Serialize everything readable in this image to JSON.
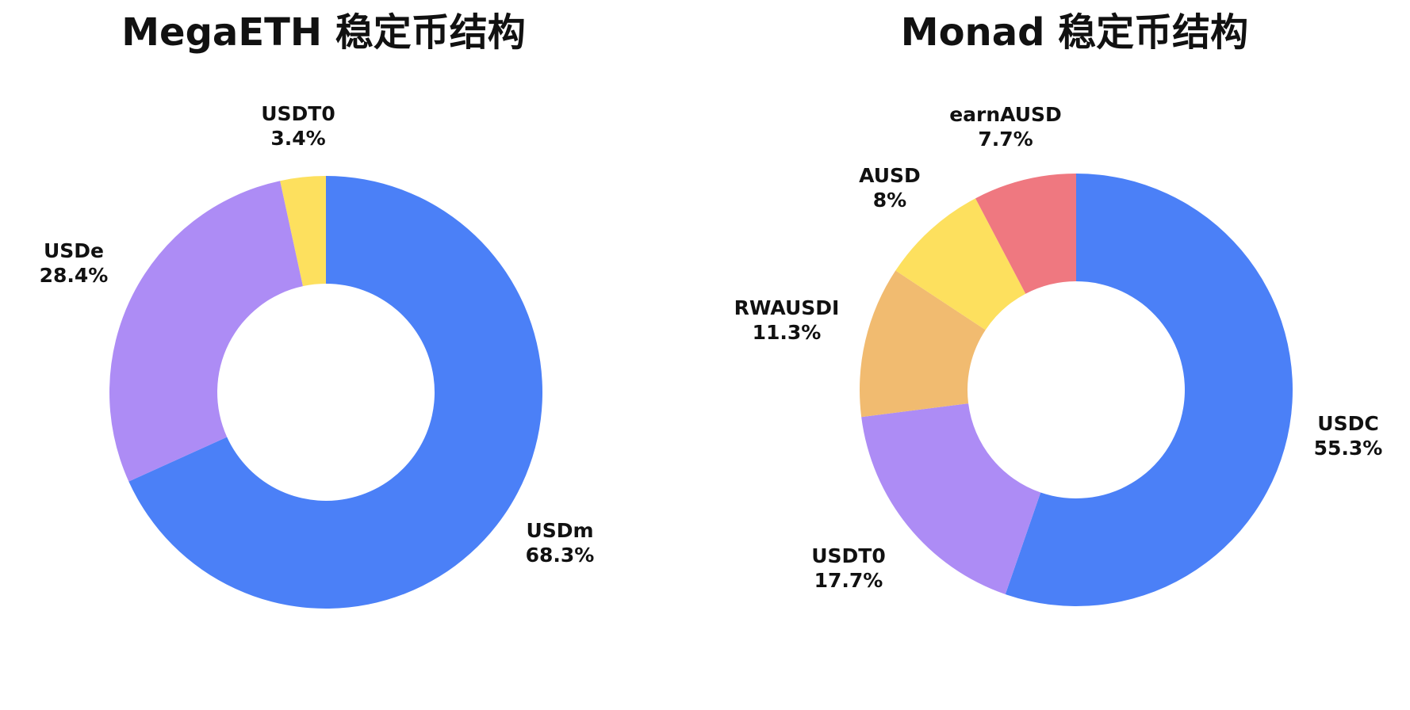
{
  "chart_data": [
    {
      "type": "pie",
      "title": "MegaETH 稳定币结构",
      "slices": [
        {
          "label": "USDm",
          "value": 68.3,
          "value_label": "68.3%",
          "color": "#4b80f7"
        },
        {
          "label": "USDe",
          "value": 28.4,
          "value_label": "28.4%",
          "color": "#ad8cf5"
        },
        {
          "label": "USDT0",
          "value": 3.4,
          "value_label": "3.4%",
          "color": "#fde05e"
        }
      ]
    },
    {
      "type": "pie",
      "title": "Monad 稳定币结构",
      "slices": [
        {
          "label": "USDC",
          "value": 55.3,
          "value_label": "55.3%",
          "color": "#4b80f7"
        },
        {
          "label": "USDT0",
          "value": 17.7,
          "value_label": "17.7%",
          "color": "#ad8cf5"
        },
        {
          "label": "RWAUSDI",
          "value": 11.3,
          "value_label": "11.3%",
          "color": "#f1bb70"
        },
        {
          "label": "AUSD",
          "value": 8,
          "value_label": "8%",
          "color": "#fde05e"
        },
        {
          "label": "earnAUSD",
          "value": 7.7,
          "value_label": "7.7%",
          "color": "#ef7880"
        }
      ]
    }
  ]
}
